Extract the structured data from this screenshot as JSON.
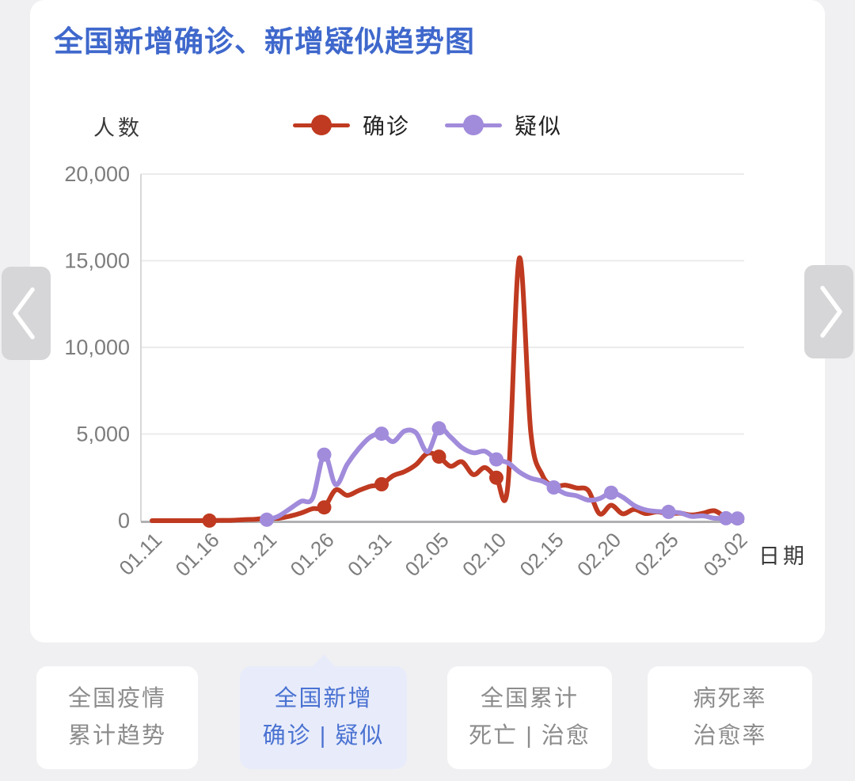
{
  "header": {
    "title": "全国新增确诊、新增疑似趋势图"
  },
  "axes": {
    "y_unit": "人数",
    "x_unit": "日期"
  },
  "legend": [
    {
      "label": "确诊",
      "color": "#bf3a20",
      "icon": "line-dot-marker-icon"
    },
    {
      "label": "疑似",
      "color": "#a18bdb",
      "icon": "line-dot-marker-icon"
    }
  ],
  "nav": {
    "left_icon": "chevron-left",
    "right_icon": "chevron-right"
  },
  "tabs": [
    {
      "line1": "全国疫情",
      "line2": "累计趋势",
      "active": false
    },
    {
      "line1": "全国新增",
      "line2": "确诊 | 疑似",
      "active": true
    },
    {
      "line1": "全国累计",
      "line2": "死亡 | 治愈",
      "active": false
    },
    {
      "line1": "病死率",
      "line2": "治愈率",
      "active": false
    }
  ],
  "colors": {
    "title": "#3f68cc",
    "page_background": "#f0f0f2",
    "card_background": "#ffffff",
    "active_tab_background": "#e8ecfa",
    "active_tab_text": "#4a72d2",
    "inactive_tab_text": "#8c8c8c",
    "grid_line": "#ebebeb",
    "axis_line": "#b0b0b3",
    "tick_text": "#7d7d7d"
  },
  "chart_data": {
    "type": "line",
    "title": "全国新增确诊、新增疑似趋势图",
    "xlabel": "日期",
    "ylabel": "人数",
    "ylim": [
      0,
      20000
    ],
    "grid": true,
    "legend_position": "top",
    "x": [
      "01.11",
      "01.12",
      "01.13",
      "01.14",
      "01.15",
      "01.16",
      "01.17",
      "01.18",
      "01.19",
      "01.20",
      "01.21",
      "01.22",
      "01.23",
      "01.24",
      "01.25",
      "01.26",
      "01.27",
      "01.28",
      "01.29",
      "01.30",
      "01.31",
      "02.01",
      "02.02",
      "02.03",
      "02.04",
      "02.05",
      "02.06",
      "02.07",
      "02.08",
      "02.09",
      "02.10",
      "02.11",
      "02.12",
      "02.13",
      "02.14",
      "02.15",
      "02.16",
      "02.17",
      "02.18",
      "02.19",
      "02.20",
      "02.21",
      "02.22",
      "02.23",
      "02.24",
      "02.25",
      "02.26",
      "02.27",
      "02.28",
      "02.29",
      "03.01",
      "03.02"
    ],
    "series": [
      {
        "name": "确诊",
        "color": "#bf3a20",
        "values": [
          0,
          0,
          0,
          0,
          0,
          4,
          17,
          25,
          59,
          77,
          149,
          131,
          259,
          444,
          688,
          769,
          1771,
          1459,
          1737,
          1982,
          2102,
          2590,
          2829,
          3235,
          3887,
          3694,
          3143,
          3399,
          2656,
          3062,
          2478,
          2015,
          15152,
          5090,
          2641,
          2009,
          2048,
          1886,
          1749,
          394,
          889,
          397,
          648,
          409,
          508,
          406,
          433,
          327,
          427,
          573,
          202,
          125
        ],
        "marker_days": [
          5,
          15,
          20,
          25,
          30
        ]
      },
      {
        "name": "疑似",
        "color": "#a18bdb",
        "values": [
          null,
          null,
          null,
          null,
          null,
          null,
          null,
          null,
          null,
          null,
          53,
          257,
          680,
          1118,
          1309,
          3806,
          2077,
          3248,
          4148,
          4812,
          5019,
          4562,
          5173,
          5072,
          3971,
          5328,
          4833,
          4214,
          3916,
          4008,
          3536,
          3342,
          2807,
          2450,
          2277,
          1918,
          1563,
          1432,
          1185,
          1277,
          1614,
          1361,
          882,
          620,
          530,
          508,
          452,
          248,
          277,
          141,
          141,
          129
        ],
        "marker_days": [
          10,
          15,
          20,
          25,
          30,
          35,
          40,
          45,
          50,
          51
        ]
      }
    ],
    "yticks": {
      "values": [
        0,
        5000,
        10000,
        15000,
        20000
      ],
      "labels": [
        "0",
        "5,000",
        "10,000",
        "15,000",
        "20,000"
      ]
    },
    "xticks": {
      "days": [
        0,
        5,
        10,
        15,
        20,
        25,
        30,
        35,
        40,
        45,
        51
      ],
      "labels": [
        "01.11",
        "01.16",
        "01.21",
        "01.26",
        "01.31",
        "02.05",
        "02.10",
        "02.15",
        "02.20",
        "02.25",
        "03.02"
      ]
    }
  }
}
